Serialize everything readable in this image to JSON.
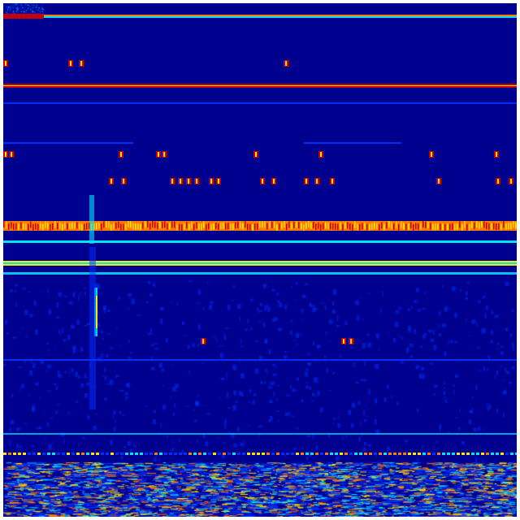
{
  "image": {
    "colormap": "jet",
    "colors": {
      "background": "#00008f",
      "blue": "#0030ff",
      "cyan": "#00e5ff",
      "yellow": "#ffe600",
      "orange": "#ff7a00",
      "red": "#c80000",
      "border": "#ffffff"
    }
  }
}
